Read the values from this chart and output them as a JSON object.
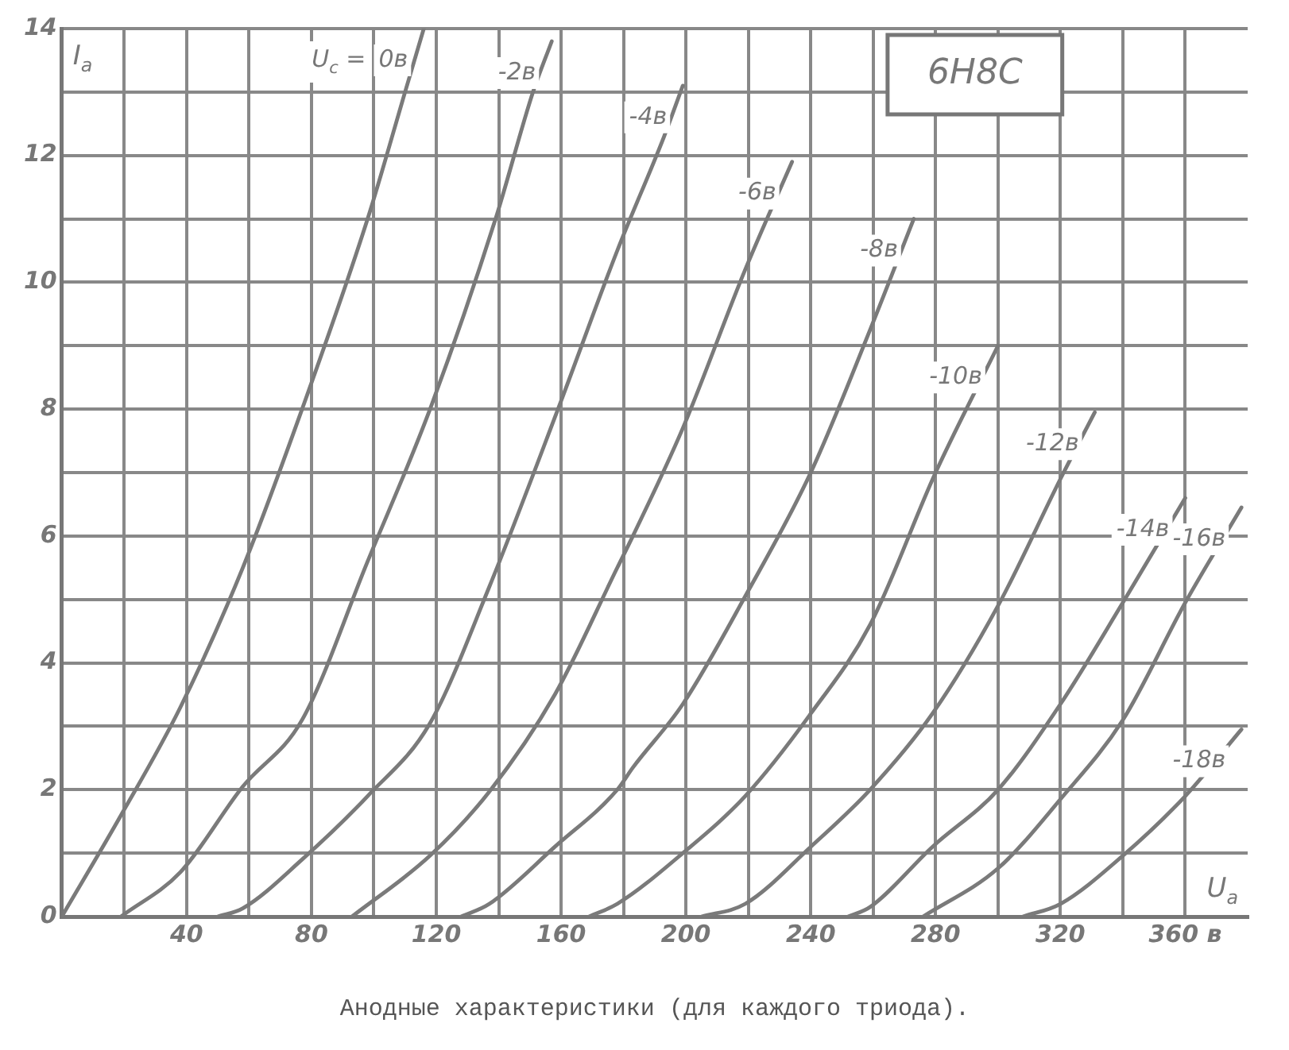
{
  "chart_data": {
    "type": "line",
    "title": "6Н8С",
    "xlabel": "U$_{a}$",
    "ylabel": "I$_{a}$",
    "legend_title": "U$_{c}$ =",
    "annotations": [
      "Анодные характеристики (для каждого триода)."
    ],
    "xlim": [
      0,
      380
    ],
    "ylim": [
      0,
      14
    ],
    "xticks": [
      {
        "value": 0,
        "label": null
      },
      {
        "value": 20,
        "label": null
      },
      40,
      {
        "value": 60,
        "label": null
      },
      80,
      {
        "value": 100,
        "label": null
      },
      120,
      {
        "value": 140,
        "label": null
      },
      160,
      {
        "value": 180,
        "label": null
      },
      200,
      {
        "value": 220,
        "label": null
      },
      240,
      {
        "value": 260,
        "label": null
      },
      280,
      {
        "value": 300,
        "label": null
      },
      320,
      {
        "value": 340,
        "label": null
      },
      {
        "value": 360,
        "label": "360 в"
      }
    ],
    "yticks": [
      0,
      {
        "value": 1,
        "label": null
      },
      2,
      {
        "value": 3,
        "label": null
      },
      4,
      {
        "value": 5,
        "label": null
      },
      6,
      {
        "value": 7,
        "label": null
      },
      8,
      {
        "value": 9,
        "label": null
      },
      10,
      {
        "value": 11,
        "label": null
      },
      12,
      {
        "value": 13,
        "label": null
      },
      14
    ],
    "grid": true,
    "legend": false,
    "line_style": "solid",
    "series": [
      {
        "name": "0в",
        "color": "#7a7a7a",
        "x": [
          0,
          19,
          38,
          58,
          77,
          98,
          110,
          116
        ],
        "values": [
          0,
          1.6,
          3.3,
          5.5,
          8,
          11,
          13,
          14
        ]
      },
      {
        "name": "-2в",
        "color": "#7a7a7a",
        "x": [
          19,
          38,
          58,
          77,
          98,
          118,
          139,
          151,
          157
        ],
        "values": [
          0,
          0.7,
          2.05,
          3.1,
          5.6,
          8,
          11,
          13,
          13.8
        ]
      },
      {
        "name": "-4в",
        "color": "#7a7a7a",
        "x": [
          50,
          58,
          77,
          98,
          118,
          137,
          159,
          178,
          193,
          199
        ],
        "values": [
          0,
          0.13,
          0.9,
          1.9,
          3.05,
          5.2,
          8,
          10.5,
          12.3,
          13.1
        ]
      },
      {
        "name": "-6в",
        "color": "#7a7a7a",
        "x": [
          93,
          118,
          137,
          158,
          178,
          183,
          199,
          219,
          234
        ],
        "values": [
          0,
          0.96,
          1.97,
          3.5,
          5.5,
          6,
          7.7,
          10.2,
          11.9
        ]
      },
      {
        "name": "-8в",
        "color": "#7a7a7a",
        "x": [
          128,
          137,
          158,
          178,
          183,
          199,
          219,
          240,
          259,
          273
        ],
        "values": [
          0,
          0.2,
          1.1,
          2,
          2.35,
          3.35,
          5.05,
          7,
          9.25,
          11
        ]
      },
      {
        "name": "-10в",
        "color": "#7a7a7a",
        "x": [
          169,
          178,
          199,
          219,
          240,
          259,
          280,
          300
        ],
        "values": [
          0,
          0.2,
          1,
          1.9,
          3.2,
          4.6,
          7,
          9
        ]
      },
      {
        "name": "-12в",
        "color": "#7a7a7a",
        "x": [
          205,
          219,
          240,
          259,
          279,
          300,
          320,
          331
        ],
        "values": [
          0,
          0.2,
          1.1,
          2,
          3.2,
          4.9,
          6.9,
          7.95
        ]
      },
      {
        "name": "-14в",
        "color": "#7a7a7a",
        "x": [
          252,
          259,
          279,
          300,
          320,
          340,
          360
        ],
        "values": [
          0,
          0.15,
          1.1,
          2,
          3.35,
          4.95,
          6.6
        ]
      },
      {
        "name": "-16в",
        "color": "#7a7a7a",
        "x": [
          276,
          300,
          320,
          340,
          360,
          378
        ],
        "values": [
          0,
          0.76,
          1.85,
          3.1,
          4.95,
          6.45
        ]
      },
      {
        "name": "-18в",
        "color": "#7a7a7a",
        "x": [
          308,
          320,
          340,
          360,
          378
        ],
        "values": [
          0,
          0.2,
          0.96,
          1.9,
          2.95
        ]
      }
    ]
  }
}
